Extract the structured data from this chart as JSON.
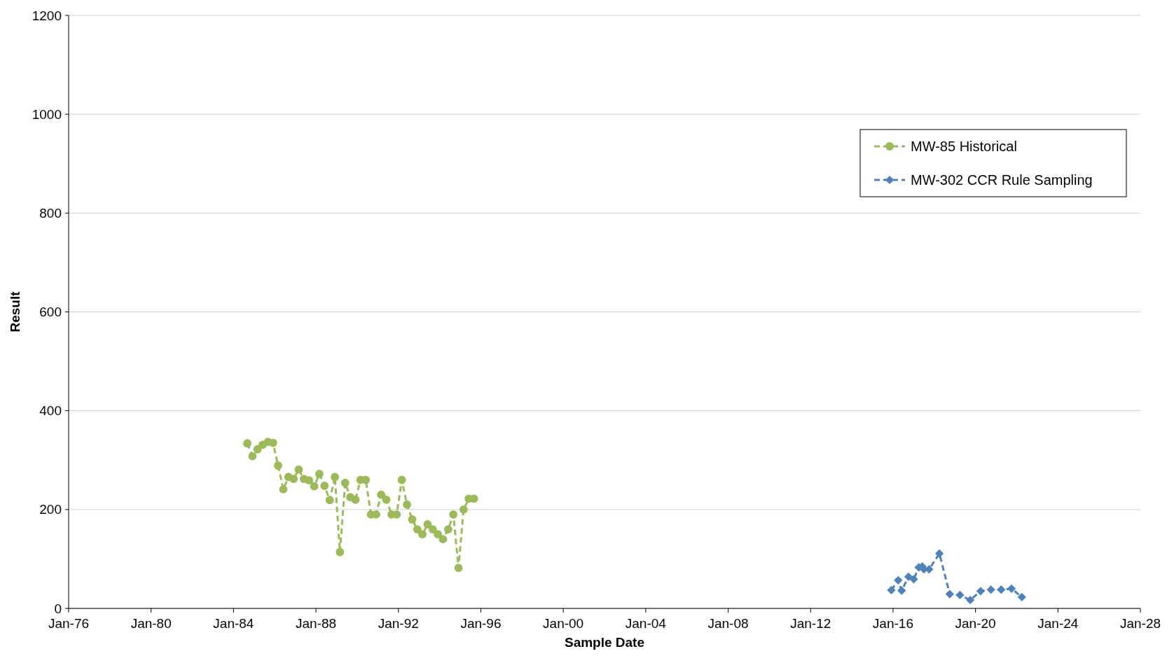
{
  "chart_data": {
    "type": "line",
    "xlabel": "Sample Date",
    "ylabel": "Result",
    "xlim": [
      "1976-01",
      "2028-01"
    ],
    "xticks": [
      {
        "value": "1976-01",
        "label": "Jan-76"
      },
      {
        "value": "1980-01",
        "label": "Jan-80"
      },
      {
        "value": "1984-01",
        "label": "Jan-84"
      },
      {
        "value": "1988-01",
        "label": "Jan-88"
      },
      {
        "value": "1992-01",
        "label": "Jan-92"
      },
      {
        "value": "1996-01",
        "label": "Jan-96"
      },
      {
        "value": "2000-01",
        "label": "Jan-00"
      },
      {
        "value": "2004-01",
        "label": "Jan-04"
      },
      {
        "value": "2008-01",
        "label": "Jan-08"
      },
      {
        "value": "2012-01",
        "label": "Jan-12"
      },
      {
        "value": "2016-01",
        "label": "Jan-16"
      },
      {
        "value": "2020-01",
        "label": "Jan-20"
      },
      {
        "value": "2024-01",
        "label": "Jan-24"
      },
      {
        "value": "2028-01",
        "label": "Jan-28"
      }
    ],
    "ylim": [
      0,
      1200
    ],
    "yticks": [
      0,
      200,
      400,
      600,
      800,
      1000,
      1200
    ],
    "grid": "y",
    "legend": "top right",
    "line_style": "dashed",
    "series": [
      {
        "name": "MW-85 Historical",
        "color": "#9bbb59",
        "marker": "circle",
        "x": [
          "1984-09",
          "1984-12",
          "1985-03",
          "1985-06",
          "1985-09",
          "1985-12",
          "1986-03",
          "1986-06",
          "1986-09",
          "1986-12",
          "1987-03",
          "1987-06",
          "1987-09",
          "1987-12",
          "1988-03",
          "1988-06",
          "1988-09",
          "1988-12",
          "1989-03",
          "1989-06",
          "1989-09",
          "1989-12",
          "1990-03",
          "1990-06",
          "1990-09",
          "1990-12",
          "1991-03",
          "1991-06",
          "1991-09",
          "1991-12",
          "1992-03",
          "1992-06",
          "1992-09",
          "1992-12",
          "1993-03",
          "1993-06",
          "1993-09",
          "1993-12",
          "1994-03",
          "1994-06",
          "1994-09",
          "1994-12",
          "1995-03",
          "1995-06",
          "1995-09"
        ],
        "values": [
          334,
          308,
          322,
          331,
          337,
          335,
          289,
          241,
          266,
          262,
          281,
          262,
          259,
          247,
          272,
          248,
          219,
          266,
          114,
          254,
          225,
          220,
          260,
          260,
          190,
          190,
          230,
          220,
          190,
          190,
          260,
          210,
          180,
          160,
          150,
          170,
          160,
          150,
          140,
          160,
          190,
          82,
          200,
          222,
          222
        ]
      },
      {
        "name": "MW-302 CCR Rule Sampling",
        "color": "#4f81bd",
        "marker": "diamond",
        "x": [
          "2015-12",
          "2016-04",
          "2016-06",
          "2016-10",
          "2017-01",
          "2017-04",
          "2017-06",
          "2017-07",
          "2017-10",
          "2018-04",
          "2018-10",
          "2019-04",
          "2019-10",
          "2020-04",
          "2020-10",
          "2021-04",
          "2021-10",
          "2022-04"
        ],
        "values": [
          37,
          57,
          36,
          64,
          59,
          83,
          85,
          79,
          79,
          111,
          29,
          27,
          17,
          35,
          38,
          38,
          40,
          23
        ]
      }
    ]
  }
}
